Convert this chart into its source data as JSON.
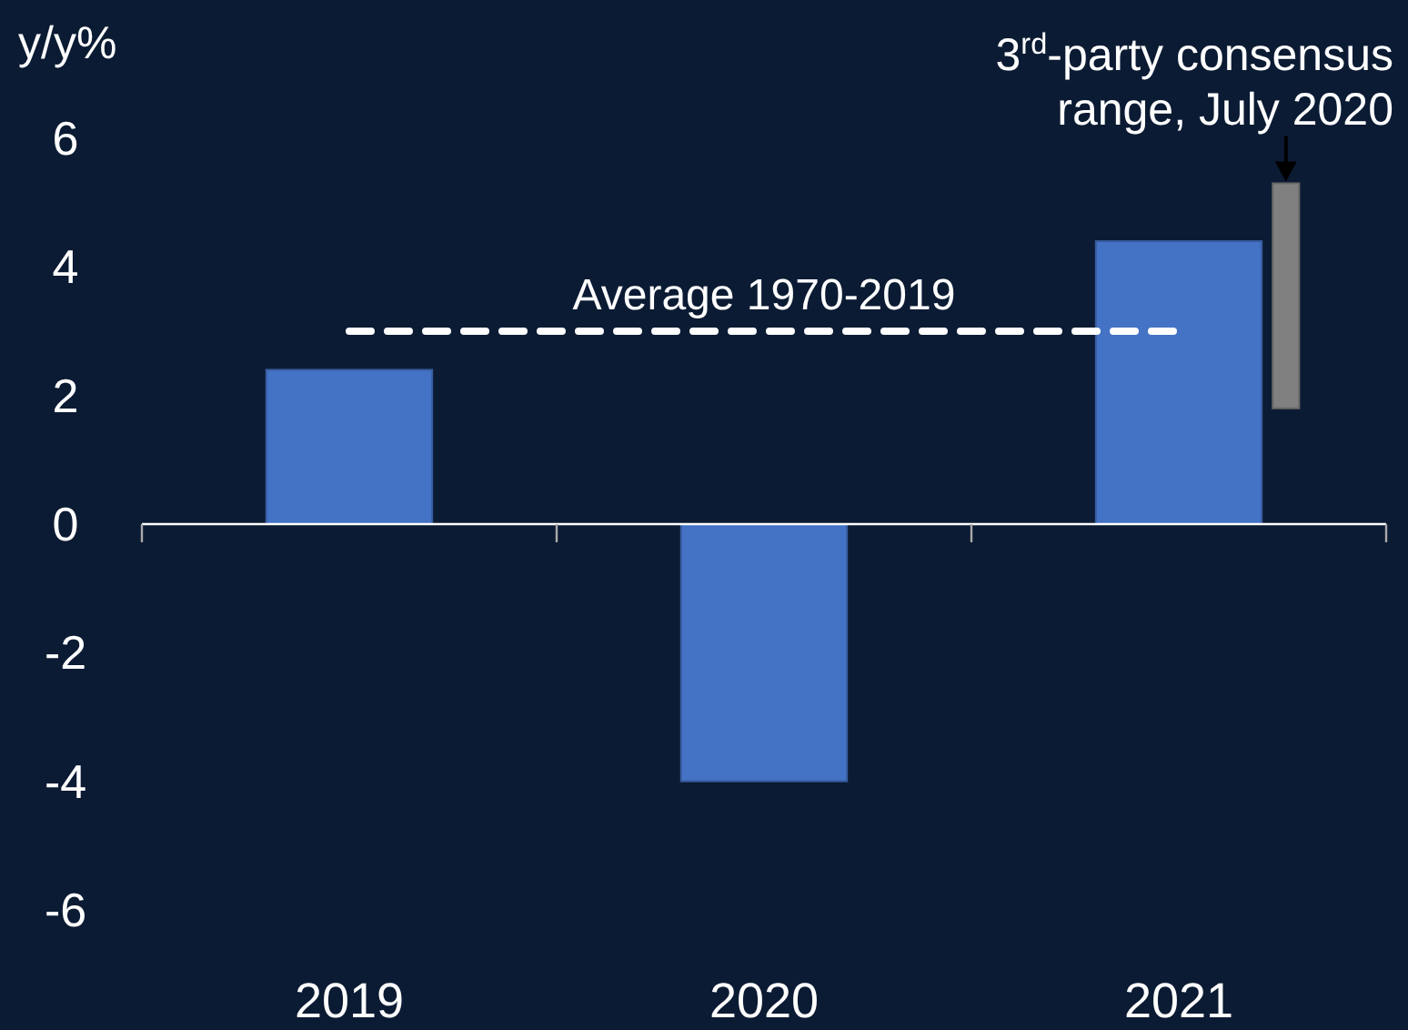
{
  "chart_data": {
    "type": "bar",
    "ylabel": "y/y%",
    "categories": [
      "2019",
      "2020",
      "2021"
    ],
    "series": [
      {
        "color": "#4472c4",
        "values": [
          2.4,
          -4.0,
          4.4
        ]
      },
      {
        "color": "#808080",
        "values": [
          null,
          null,
          3.5
        ],
        "base": [
          null,
          null,
          1.8
        ]
      }
    ],
    "ylim": [
      -6,
      6
    ],
    "yticks": [
      -6,
      -4,
      -2,
      0,
      2,
      4,
      6
    ],
    "ref_lines": [
      {
        "axis": "y",
        "value": 3.0,
        "label": "Average 1970-2019",
        "color": "#ffffff",
        "line_style": "dashed"
      }
    ],
    "annotations": [
      "3$^{rd}$-party consensus range, July 2020"
    ]
  }
}
